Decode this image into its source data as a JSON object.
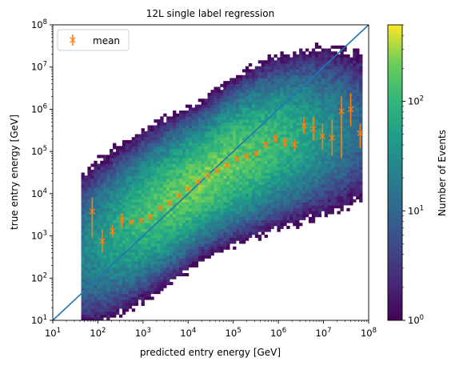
{
  "chart_data": {
    "type": "heatmap",
    "title": "12L single label regression",
    "xlabel": "predicted entry energy [GeV]",
    "ylabel": "true entry energy [GeV]",
    "x_scale": "log",
    "y_scale": "log",
    "xlim": [
      10,
      100000000
    ],
    "ylim": [
      10,
      100000000
    ],
    "x_ticks": [
      {
        "value": 10,
        "base": "10",
        "exp": "1"
      },
      {
        "value": 100,
        "base": "10",
        "exp": "2"
      },
      {
        "value": 1000,
        "base": "10",
        "exp": "3"
      },
      {
        "value": 10000,
        "base": "10",
        "exp": "4"
      },
      {
        "value": 100000,
        "base": "10",
        "exp": "5"
      },
      {
        "value": 1000000,
        "base": "10",
        "exp": "6"
      },
      {
        "value": 10000000,
        "base": "10",
        "exp": "7"
      },
      {
        "value": 100000000,
        "base": "10",
        "exp": "8"
      }
    ],
    "y_ticks": [
      {
        "value": 10,
        "base": "10",
        "exp": "1"
      },
      {
        "value": 100,
        "base": "10",
        "exp": "2"
      },
      {
        "value": 1000,
        "base": "10",
        "exp": "3"
      },
      {
        "value": 10000,
        "base": "10",
        "exp": "4"
      },
      {
        "value": 100000,
        "base": "10",
        "exp": "5"
      },
      {
        "value": 1000000,
        "base": "10",
        "exp": "6"
      },
      {
        "value": 10000000,
        "base": "10",
        "exp": "7"
      },
      {
        "value": 100000000,
        "base": "10",
        "exp": "8"
      }
    ],
    "grid": false,
    "legend": {
      "placement": "top-left",
      "entries": [
        "mean"
      ]
    },
    "diagonal_line": {
      "from": [
        10,
        10
      ],
      "to": [
        100000000,
        100000000
      ],
      "color": "#1f77b4"
    },
    "mean_color": "#ff7f0e",
    "mean_series": {
      "name": "mean",
      "points": [
        {
          "x": 75,
          "y": 3800,
          "ylo": 900,
          "yhi": 8000
        },
        {
          "x": 125,
          "y": 750,
          "ylo": 400,
          "yhi": 1400
        },
        {
          "x": 210,
          "y": 1300,
          "ylo": 950,
          "yhi": 1800
        },
        {
          "x": 340,
          "y": 2400,
          "ylo": 1500,
          "yhi": 3500
        },
        {
          "x": 550,
          "y": 2100,
          "ylo": 1900,
          "yhi": 2400
        },
        {
          "x": 900,
          "y": 2300,
          "ylo": 2100,
          "yhi": 2600
        },
        {
          "x": 1450,
          "y": 2800,
          "ylo": 2500,
          "yhi": 3200
        },
        {
          "x": 2400,
          "y": 4500,
          "ylo": 4100,
          "yhi": 5000
        },
        {
          "x": 3900,
          "y": 6000,
          "ylo": 5500,
          "yhi": 6600
        },
        {
          "x": 6300,
          "y": 9000,
          "ylo": 8300,
          "yhi": 9800
        },
        {
          "x": 10000,
          "y": 13000,
          "ylo": 12000,
          "yhi": 14000
        },
        {
          "x": 16500,
          "y": 19000,
          "ylo": 17500,
          "yhi": 20500
        },
        {
          "x": 27000,
          "y": 27000,
          "ylo": 25000,
          "yhi": 29000
        },
        {
          "x": 44000,
          "y": 35000,
          "ylo": 32000,
          "yhi": 38000
        },
        {
          "x": 72000,
          "y": 47000,
          "ylo": 43000,
          "yhi": 51000
        },
        {
          "x": 120000,
          "y": 67000,
          "ylo": 61000,
          "yhi": 74000
        },
        {
          "x": 195000,
          "y": 78000,
          "ylo": 70000,
          "yhi": 87000
        },
        {
          "x": 320000,
          "y": 90000,
          "ylo": 79000,
          "yhi": 102000
        },
        {
          "x": 520000,
          "y": 145000,
          "ylo": 125000,
          "yhi": 170000
        },
        {
          "x": 850000,
          "y": 200000,
          "ylo": 160000,
          "yhi": 260000
        },
        {
          "x": 1400000,
          "y": 160000,
          "ylo": 125000,
          "yhi": 210000
        },
        {
          "x": 2300000,
          "y": 145000,
          "ylo": 110000,
          "yhi": 190000
        },
        {
          "x": 3700000,
          "y": 410000,
          "ylo": 260000,
          "yhi": 650000
        },
        {
          "x": 6000000,
          "y": 340000,
          "ylo": 180000,
          "yhi": 650000
        },
        {
          "x": 9500000,
          "y": 230000,
          "ylo": 110000,
          "yhi": 450000
        },
        {
          "x": 15500000,
          "y": 210000,
          "ylo": 80000,
          "yhi": 560000
        },
        {
          "x": 25000000,
          "y": 900000,
          "ylo": 70000,
          "yhi": 2000000
        },
        {
          "x": 40000000,
          "y": 1000000,
          "ylo": 400000,
          "yhi": 2400000
        },
        {
          "x": 65000000,
          "y": 270000,
          "ylo": 120000,
          "yhi": 450000
        }
      ]
    },
    "density_model": {
      "ridge": [
        {
          "x": 10,
          "y": 180
        },
        {
          "x": 100,
          "y": 700
        },
        {
          "x": 1000,
          "y": 3000
        },
        {
          "x": 10000,
          "y": 13000
        },
        {
          "x": 100000,
          "y": 60000
        },
        {
          "x": 1000000,
          "y": 170000
        },
        {
          "x": 10000000,
          "y": 300000
        },
        {
          "x": 100000000,
          "y": 400000
        }
      ],
      "peak_x": 20000,
      "x_extent": [
        40,
        70000000
      ],
      "counts_range": [
        1,
        500
      ]
    },
    "colorbar": {
      "label": "Number of Events",
      "scale": "log",
      "range": [
        1,
        500
      ],
      "colormap": "viridis",
      "ticks": [
        {
          "value": 1,
          "base": "10",
          "exp": "0"
        },
        {
          "value": 10,
          "base": "10",
          "exp": "1"
        },
        {
          "value": 100,
          "base": "10",
          "exp": "2"
        }
      ]
    }
  }
}
